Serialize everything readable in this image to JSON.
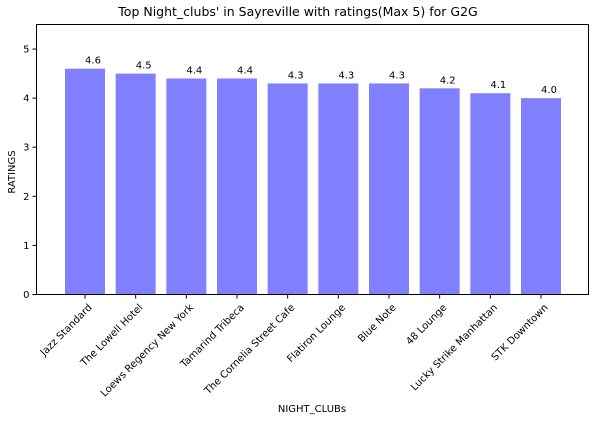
{
  "chart_data": {
    "type": "bar",
    "title": "Top Night_clubs' in Sayreville with ratings(Max 5) for G2G",
    "xlabel": "NIGHT_CLUBs",
    "ylabel": "RATINGS",
    "categories": [
      "Jazz Standard",
      "The Lowell Hotel",
      "Loews Regency New York",
      "Tamarind Tribeca",
      "The Cornelia Street Cafe",
      "Flatiron Lounge",
      "Blue Note",
      "48 Lounge",
      "Lucky Strike Manhattan",
      "STK Downtown"
    ],
    "values": [
      4.6,
      4.5,
      4.4,
      4.4,
      4.3,
      4.3,
      4.3,
      4.2,
      4.1,
      4.0
    ],
    "data_labels": [
      "4.6",
      "4.5",
      "4.4",
      "4.4",
      "4.3",
      "4.3",
      "4.3",
      "4.2",
      "4.1",
      "4.0"
    ],
    "yticks": [
      0,
      1,
      2,
      3,
      4,
      5
    ],
    "ylim": [
      0,
      5.5
    ],
    "bar_color": "#8080ff",
    "grid": false,
    "legend": "none"
  }
}
